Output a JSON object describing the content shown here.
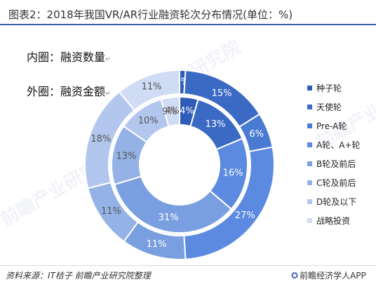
{
  "title": "图表2：2018年我国VR/AR行业融资轮次分布情况(单位：%)",
  "inner_label": "内圈：融资数量",
  "outer_label": "外圈：融资金额",
  "return_mark": "↵",
  "source": "资料来源：IT桔子 前瞻产业研究院整理",
  "brand": "前瞻经济学人APP",
  "brand_icon": "qianzhan-logo-icon",
  "watermark": "前瞻产业研究院",
  "chart_data": {
    "type": "donut",
    "title": "图表2：2018年我国VR/AR行业融资轮次分布情况(单位：%)",
    "unit": "%",
    "categories": [
      "种子轮",
      "天使轮",
      "Pre-A轮",
      "A轮、A+轮",
      "B轮及前后",
      "C轮及前后",
      "D轮及以下",
      "战略投资"
    ],
    "colors": [
      "#2e5cb8",
      "#3a6ac4",
      "#4a7bd2",
      "#5b8ae0",
      "#7a9fe0",
      "#94b2e6",
      "#b3c6ee",
      "#d0dcf4"
    ],
    "series": [
      {
        "name": "内圈：融资数量",
        "ring": "inner",
        "values": [
          4,
          13,
          0,
          16,
          31,
          13,
          10,
          4
        ],
        "labels": [
          "4%",
          "13%",
          "",
          "16%",
          "31%",
          "13%",
          "10%",
          "4%"
        ]
      },
      {
        "name": "外圈：融资金额",
        "ring": "outer",
        "values": [
          1,
          15,
          6,
          27,
          11,
          11,
          18,
          11
        ],
        "labels": [
          "1%",
          "15%",
          "6%",
          "27%",
          "11%",
          "11%",
          "18%",
          "11%"
        ]
      }
    ],
    "extra_labels": [
      {
        "ring": "inner",
        "text": "9%"
      }
    ],
    "legend_position": "right"
  }
}
